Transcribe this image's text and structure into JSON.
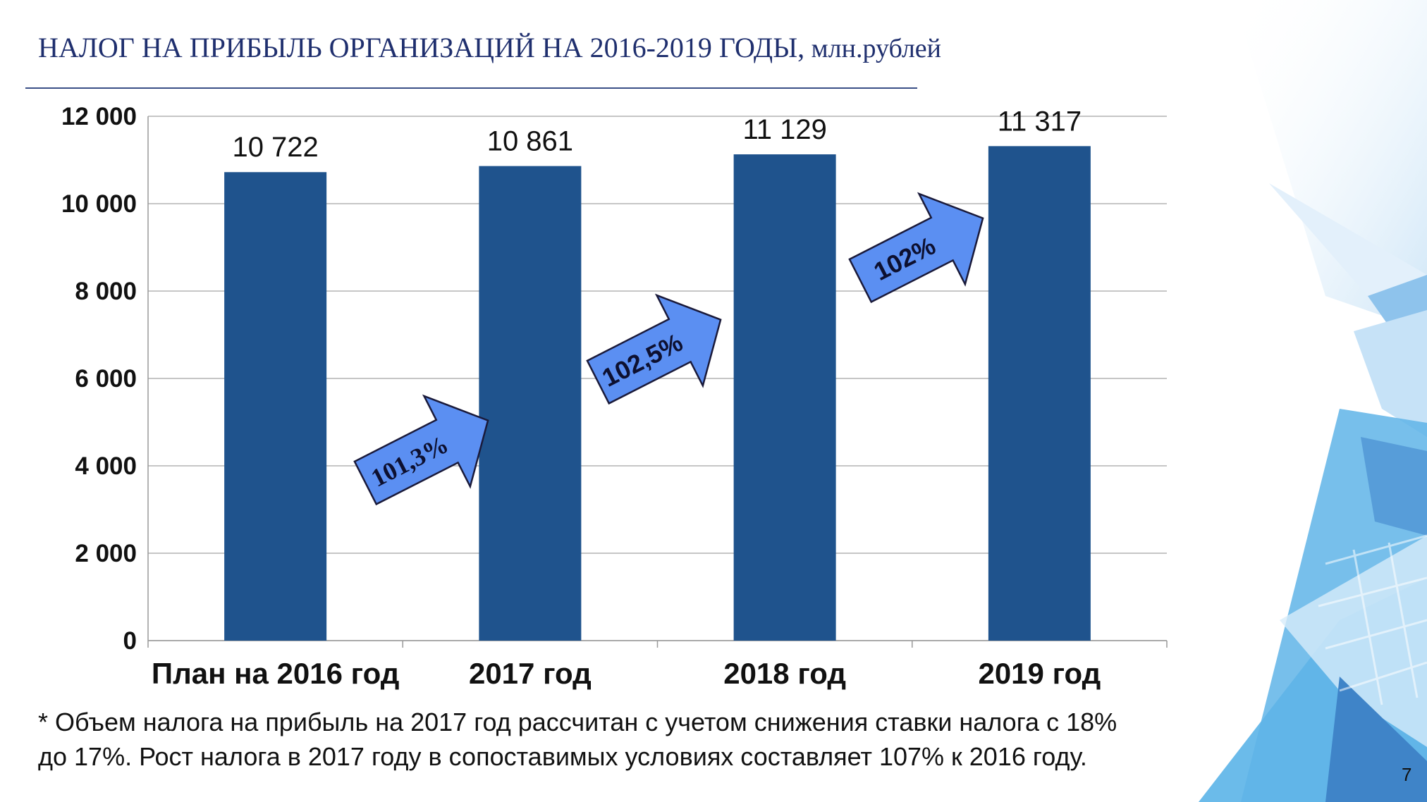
{
  "slide": {
    "title": "НАЛОГ НА ПРИБЫЛЬ ОРГАНИЗАЦИЙ НА 2016-2019 ГОДЫ,",
    "unit": " млн.рублей",
    "footnote_line1": "* Объем налога на прибыль на 2017 год рассчитан с учетом снижения ставки налога с 18%",
    "footnote_line2": "до 17%. Рост налога в 2017 году в сопоставимых условиях составляет 107% к 2016 году.",
    "page_number": "7"
  },
  "colors": {
    "bar": "#1f538d",
    "arrow": "#5b8ff2",
    "title": "#1f2f6e",
    "grid": "#b3b3b3"
  },
  "chart_data": {
    "type": "bar",
    "title": "НАЛОГ НА ПРИБЫЛЬ ОРГАНИЗАЦИЙ НА 2016-2019 ГОДЫ, млн.рублей",
    "categories": [
      "План на 2016 год",
      "2017 год",
      "2018 год",
      "2019 год"
    ],
    "values": [
      10722,
      10861,
      11129,
      11317
    ],
    "value_labels": [
      "10 722",
      "10 861",
      "11 129",
      "11 317"
    ],
    "ylim": [
      0,
      12000
    ],
    "yticks": [
      0,
      2000,
      4000,
      6000,
      8000,
      10000,
      12000
    ],
    "ytick_labels": [
      "0",
      "2 000",
      "4 000",
      "6 000",
      "8 000",
      "10 000",
      "12 000"
    ],
    "grid": true,
    "growth_annotations": [
      {
        "from": "План на 2016 год",
        "to": "2017 год",
        "label": "101,3%"
      },
      {
        "from": "2017 год",
        "to": "2018 год",
        "label": "102,5%"
      },
      {
        "from": "2018 год",
        "to": "2019 год",
        "label": "102%"
      }
    ]
  }
}
